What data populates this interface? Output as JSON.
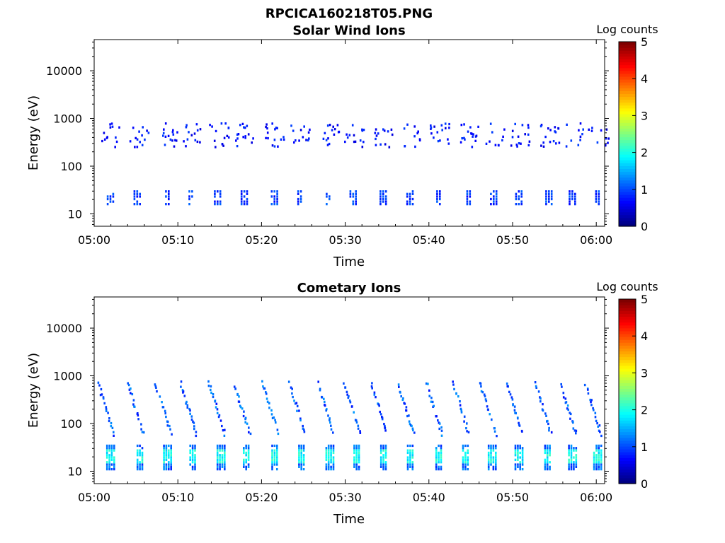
{
  "figure": {
    "title": "RPCICA160218T05.PNG"
  },
  "chart_data": [
    {
      "type": "heatmap",
      "title": "Solar Wind Ions",
      "xlabel": "Time",
      "ylabel": "Energy (eV)",
      "x_tick_labels": [
        "05:00",
        "05:10",
        "05:20",
        "05:30",
        "05:40",
        "05:50",
        "06:00"
      ],
      "x_range_minutes": [
        0,
        61
      ],
      "y_scale": "log",
      "y_tick_values": [
        10,
        100,
        1000,
        10000
      ],
      "y_tick_labels": [
        "10",
        "100",
        "1000",
        "10000"
      ],
      "y_range": [
        5.5,
        45000
      ],
      "colorbar": {
        "label": "Log counts",
        "range": [
          0,
          5
        ],
        "tick_labels": [
          "0",
          "1",
          "2",
          "3",
          "4",
          "5"
        ],
        "colormap": "jet"
      },
      "bursts": {
        "low_band_eV": [
          16,
          32
        ],
        "low_band_log_counts": 0.9,
        "high_band_eV": [
          250,
          800
        ],
        "high_band_log_counts": 0.6,
        "times_minutes": [
          2,
          5.2,
          8.8,
          11.6,
          14.8,
          18,
          21.6,
          24.6,
          28,
          31,
          34.6,
          37.8,
          41.2,
          44.8,
          47.8,
          50.8,
          54.4,
          57.2,
          60.2
        ]
      }
    },
    {
      "type": "heatmap",
      "title": "Cometary Ions",
      "xlabel": "Time",
      "ylabel": "Energy (eV)",
      "x_tick_labels": [
        "05:00",
        "05:10",
        "05:20",
        "05:30",
        "05:40",
        "05:50",
        "06:00"
      ],
      "x_range_minutes": [
        0,
        61
      ],
      "y_scale": "log",
      "y_tick_values": [
        10,
        100,
        1000,
        10000
      ],
      "y_tick_labels": [
        "10",
        "100",
        "1000",
        "10000"
      ],
      "y_range": [
        5.5,
        45000
      ],
      "colorbar": {
        "label": "Log counts",
        "range": [
          0,
          5
        ],
        "tick_labels": [
          "0",
          "1",
          "2",
          "3",
          "4",
          "5"
        ],
        "colormap": "jet"
      },
      "bursts": {
        "low_band_eV": [
          11,
          35
        ],
        "low_band_log_counts": 1.9,
        "arc_start_eV": 700,
        "arc_end_eV": 60,
        "arc_log_counts": 0.9,
        "times_minutes": [
          2,
          5.5,
          8.8,
          11.8,
          15.2,
          18.2,
          21.6,
          24.8,
          28.2,
          31.4,
          34.6,
          37.8,
          41.2,
          44.4,
          47.6,
          50.8,
          54.2,
          57.2,
          60.2
        ]
      }
    }
  ]
}
